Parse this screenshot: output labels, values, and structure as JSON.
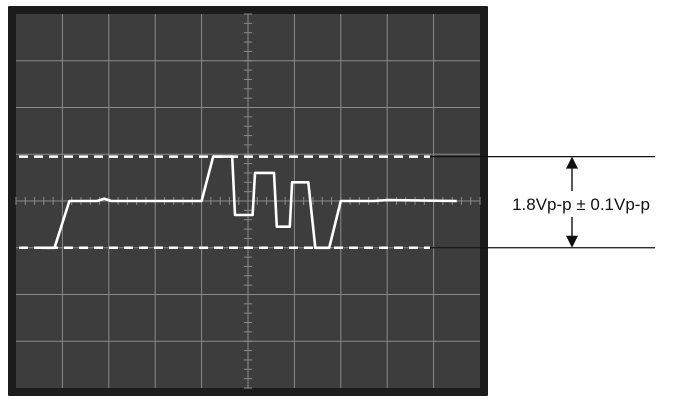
{
  "screen": {
    "divisions_x": 10,
    "divisions_y": 8,
    "colors": {
      "frame": "#1c1c1c",
      "screen": "#3d3d3d",
      "grid": "#8a8a8a",
      "trace": "#ffffff",
      "reference": "#ffffff",
      "annotation": "#111111"
    }
  },
  "waveform": {
    "x_range": [
      0,
      10
    ],
    "y_range": [
      -4,
      4
    ],
    "points": [
      [
        0.55,
        -1.0
      ],
      [
        0.83,
        -1.0
      ],
      [
        1.15,
        0.0
      ],
      [
        1.75,
        0.0
      ],
      [
        1.9,
        0.05
      ],
      [
        2.05,
        0.0
      ],
      [
        4.0,
        0.0
      ],
      [
        4.25,
        0.95
      ],
      [
        4.6,
        0.95
      ],
      [
        4.66,
        0.95
      ],
      [
        4.72,
        -0.3
      ],
      [
        5.1,
        -0.3
      ],
      [
        5.15,
        0.6
      ],
      [
        5.5,
        0.6
      ],
      [
        5.56,
        0.6
      ],
      [
        5.62,
        -0.55
      ],
      [
        5.9,
        -0.55
      ],
      [
        5.95,
        0.4
      ],
      [
        6.25,
        0.4
      ],
      [
        6.3,
        0.4
      ],
      [
        6.45,
        -1.0
      ],
      [
        6.75,
        -1.0
      ],
      [
        7.0,
        0.0
      ],
      [
        7.7,
        0.0
      ],
      [
        8.0,
        0.02
      ],
      [
        9.5,
        0.0
      ]
    ]
  },
  "reference_levels": {
    "top": 0.95,
    "bottom": -1.0
  },
  "annotation": {
    "label": "1.8Vp-p ± 0.1Vp-p"
  }
}
